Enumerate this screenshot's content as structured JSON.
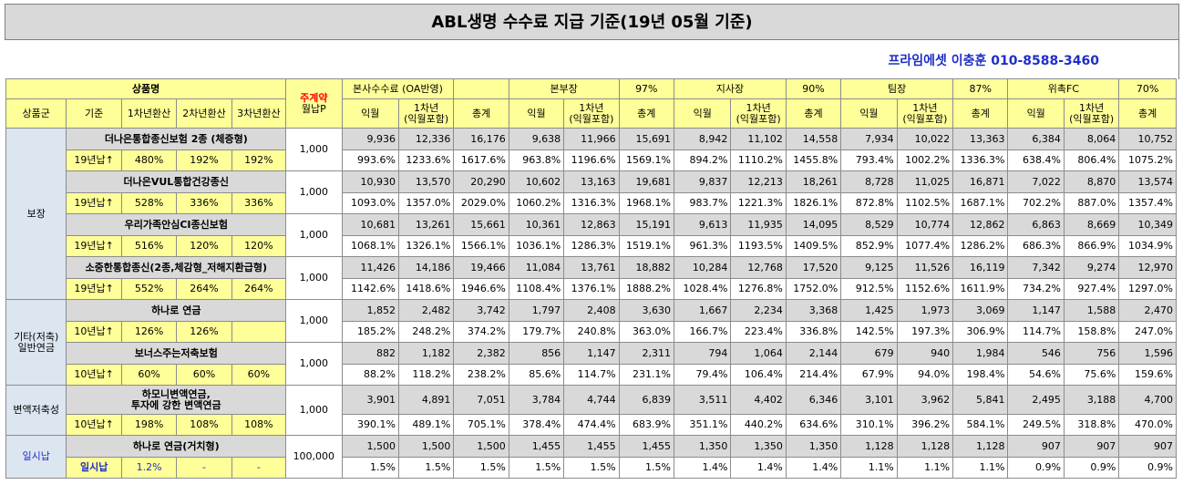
{
  "title": "ABL생명 수수료 지급 기준(19년 05월 기준)",
  "contact": "프라임에셋 이충훈 010-8588-3460",
  "header": {
    "product_name": "상품명",
    "contract": "주계약",
    "monthly_p": "월납P",
    "groups": [
      {
        "name": "본사수수료 (OA반영)",
        "pct": ""
      },
      {
        "name": "본부장",
        "pct": "97%"
      },
      {
        "name": "지사장",
        "pct": "90%"
      },
      {
        "name": "팀장",
        "pct": "87%"
      },
      {
        "name": "위촉FC",
        "pct": "70%"
      }
    ],
    "sub": {
      "group": "상품군",
      "basis": "기준",
      "y1": "1차년환산",
      "y2": "2차년환산",
      "y3": "3차년환산"
    },
    "cols": {
      "ikwol": "익월",
      "y1a": "1차년",
      "y1b": "(익월포함)",
      "total": "총계"
    }
  },
  "categories": [
    "보장",
    "기타(저축)\n일반연금",
    "변액저축성",
    "일시납"
  ],
  "products": [
    {
      "name": "더나은통합종신보험 2종 (체증형)",
      "basis": "19년납↑",
      "y1": "480%",
      "y2": "192%",
      "y3": "192%",
      "premium": "1,000",
      "amounts": [
        "9,936",
        "12,336",
        "16,176",
        "9,638",
        "11,966",
        "15,691",
        "8,942",
        "11,102",
        "14,558",
        "7,934",
        "10,022",
        "13,363",
        "6,384",
        "8,064",
        "10,752"
      ],
      "rates": [
        "993.6%",
        "1233.6%",
        "1617.6%",
        "963.8%",
        "1196.6%",
        "1569.1%",
        "894.2%",
        "1110.2%",
        "1455.8%",
        "793.4%",
        "1002.2%",
        "1336.3%",
        "638.4%",
        "806.4%",
        "1075.2%"
      ]
    },
    {
      "name": "더나은VUL통합건강종신",
      "basis": "19년납↑",
      "y1": "528%",
      "y2": "336%",
      "y3": "336%",
      "premium": "1,000",
      "amounts": [
        "10,930",
        "13,570",
        "20,290",
        "10,602",
        "13,163",
        "19,681",
        "9,837",
        "12,213",
        "18,261",
        "8,728",
        "11,025",
        "16,871",
        "7,022",
        "8,870",
        "13,574"
      ],
      "rates": [
        "1093.0%",
        "1357.0%",
        "2029.0%",
        "1060.2%",
        "1316.3%",
        "1968.1%",
        "983.7%",
        "1221.3%",
        "1826.1%",
        "872.8%",
        "1102.5%",
        "1687.1%",
        "702.2%",
        "887.0%",
        "1357.4%"
      ]
    },
    {
      "name": "우리가족안심CI종신보험",
      "basis": "19년납↑",
      "y1": "516%",
      "y2": "120%",
      "y3": "120%",
      "premium": "1,000",
      "amounts": [
        "10,681",
        "13,261",
        "15,661",
        "10,361",
        "12,863",
        "15,191",
        "9,613",
        "11,935",
        "14,095",
        "8,529",
        "10,774",
        "12,862",
        "6,863",
        "8,669",
        "10,349"
      ],
      "rates": [
        "1068.1%",
        "1326.1%",
        "1566.1%",
        "1036.1%",
        "1286.3%",
        "1519.1%",
        "961.3%",
        "1193.5%",
        "1409.5%",
        "852.9%",
        "1077.4%",
        "1286.2%",
        "686.3%",
        "866.9%",
        "1034.9%"
      ]
    },
    {
      "name": "소중한통합종신(2종,체감형_저해지환급형)",
      "basis": "19년납↑",
      "y1": "552%",
      "y2": "264%",
      "y3": "264%",
      "premium": "1,000",
      "amounts": [
        "11,426",
        "14,186",
        "19,466",
        "11,084",
        "13,761",
        "18,882",
        "10,284",
        "12,768",
        "17,520",
        "9,125",
        "11,526",
        "16,119",
        "7,342",
        "9,274",
        "12,970"
      ],
      "rates": [
        "1142.6%",
        "1418.6%",
        "1946.6%",
        "1108.4%",
        "1376.1%",
        "1888.2%",
        "1028.4%",
        "1276.8%",
        "1752.0%",
        "912.5%",
        "1152.6%",
        "1611.9%",
        "734.2%",
        "927.4%",
        "1297.0%"
      ]
    },
    {
      "name": "하나로 연금",
      "basis": "10년납↑",
      "y1": "126%",
      "y2": "126%",
      "y3": "",
      "premium": "1,000",
      "amounts": [
        "1,852",
        "2,482",
        "3,742",
        "1,797",
        "2,408",
        "3,630",
        "1,667",
        "2,234",
        "3,368",
        "1,425",
        "1,973",
        "3,069",
        "1,147",
        "1,588",
        "2,470"
      ],
      "rates": [
        "185.2%",
        "248.2%",
        "374.2%",
        "179.7%",
        "240.8%",
        "363.0%",
        "166.7%",
        "223.4%",
        "336.8%",
        "142.5%",
        "197.3%",
        "306.9%",
        "114.7%",
        "158.8%",
        "247.0%"
      ]
    },
    {
      "name": "보너스주는저축보험",
      "basis": "10년납↑",
      "y1": "60%",
      "y2": "60%",
      "y3": "60%",
      "premium": "1,000",
      "amounts": [
        "882",
        "1,182",
        "2,382",
        "856",
        "1,147",
        "2,311",
        "794",
        "1,064",
        "2,144",
        "679",
        "940",
        "1,984",
        "546",
        "756",
        "1,596"
      ],
      "rates": [
        "88.2%",
        "118.2%",
        "238.2%",
        "85.6%",
        "114.7%",
        "231.1%",
        "79.4%",
        "106.4%",
        "214.4%",
        "67.9%",
        "94.0%",
        "198.4%",
        "54.6%",
        "75.6%",
        "159.6%"
      ]
    },
    {
      "name": "하모니변액연금,\n투자에 강한 변액연금",
      "basis": "10년납↑",
      "y1": "198%",
      "y2": "108%",
      "y3": "108%",
      "premium": "1,000",
      "amounts": [
        "3,901",
        "4,891",
        "7,051",
        "3,784",
        "4,744",
        "6,839",
        "3,511",
        "4,402",
        "6,346",
        "3,101",
        "3,962",
        "5,841",
        "2,495",
        "3,188",
        "4,700"
      ],
      "rates": [
        "390.1%",
        "489.1%",
        "705.1%",
        "378.4%",
        "474.4%",
        "683.9%",
        "351.1%",
        "440.2%",
        "634.6%",
        "310.1%",
        "396.2%",
        "584.1%",
        "249.5%",
        "318.8%",
        "470.0%"
      ]
    },
    {
      "name": "하나로 연금(거치형)",
      "basis": "일시납",
      "y1": "1.2%",
      "y2": "-",
      "y3": "-",
      "premium": "100,000",
      "amounts": [
        "1,500",
        "1,500",
        "1,500",
        "1,455",
        "1,455",
        "1,455",
        "1,350",
        "1,350",
        "1,350",
        "1,128",
        "1,128",
        "1,128",
        "907",
        "907",
        "907"
      ],
      "rates": [
        "1.5%",
        "1.5%",
        "1.5%",
        "1.5%",
        "1.5%",
        "1.5%",
        "1.4%",
        "1.4%",
        "1.4%",
        "1.1%",
        "1.1%",
        "1.1%",
        "0.9%",
        "0.9%",
        "0.9%"
      ]
    }
  ]
}
